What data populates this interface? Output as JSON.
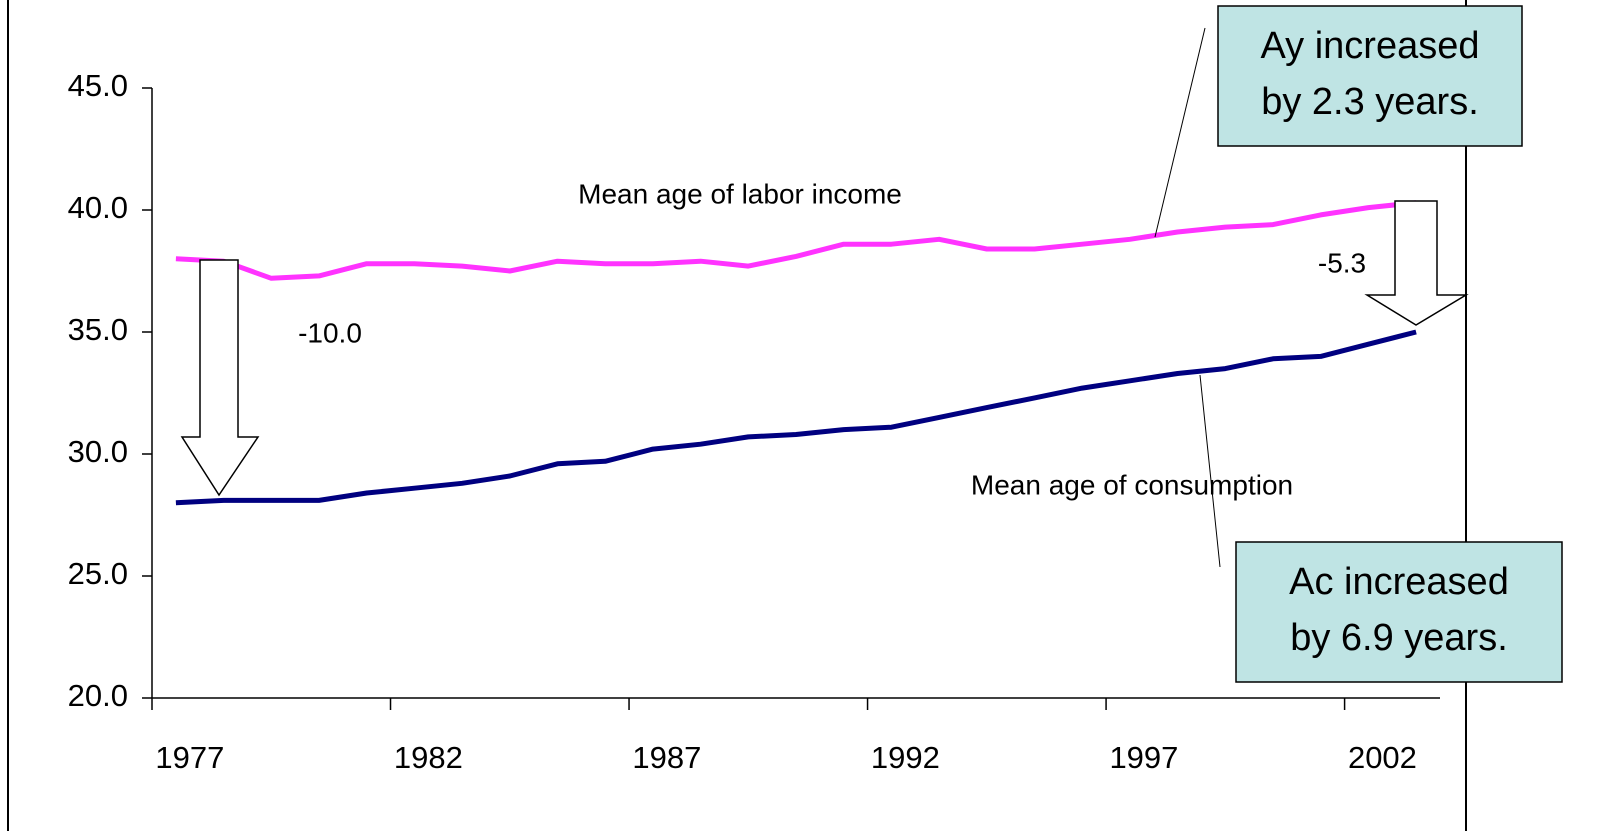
{
  "chart_data": {
    "type": "line",
    "categories": [
      "1977",
      null,
      null,
      null,
      null,
      "1982",
      null,
      null,
      null,
      null,
      "1987",
      null,
      null,
      null,
      null,
      "1992",
      null,
      null,
      null,
      null,
      "1997",
      null,
      null,
      null,
      null,
      "2002",
      null
    ],
    "series": [
      {
        "name": "Mean age of labor income",
        "color": "#ff33ff",
        "values": [
          38.0,
          37.9,
          37.2,
          37.3,
          37.8,
          37.8,
          37.7,
          37.5,
          37.9,
          37.8,
          37.8,
          37.9,
          37.7,
          38.1,
          38.6,
          38.6,
          38.8,
          38.4,
          38.4,
          38.6,
          38.8,
          39.1,
          39.3,
          39.4,
          39.8,
          40.1,
          40.3
        ]
      },
      {
        "name": "Mean age of consumption",
        "color": "#000080",
        "values": [
          28.0,
          28.1,
          28.1,
          28.1,
          28.4,
          28.6,
          28.8,
          29.1,
          29.6,
          29.7,
          30.2,
          30.4,
          30.7,
          30.8,
          31.0,
          31.1,
          31.5,
          31.9,
          32.3,
          32.7,
          33.0,
          33.3,
          33.5,
          33.9,
          34.0,
          34.5,
          35.0
        ]
      }
    ],
    "ylim": [
      20,
      45
    ],
    "yticks": [
      {
        "value": 20,
        "label": "20.0"
      },
      {
        "value": 25,
        "label": "25.0"
      },
      {
        "value": 30,
        "label": "30.0"
      },
      {
        "value": 35,
        "label": "35.0"
      },
      {
        "value": 40,
        "label": "40.0"
      },
      {
        "value": 45,
        "label": "45.0"
      }
    ],
    "grid": false,
    "annotations": [
      "-10.0",
      "-5.3"
    ],
    "callouts": [
      {
        "lines": [
          "Ay increased",
          "by 2.3 years."
        ]
      },
      {
        "lines": [
          "Ac increased",
          "by 6.9 years."
        ]
      }
    ]
  }
}
